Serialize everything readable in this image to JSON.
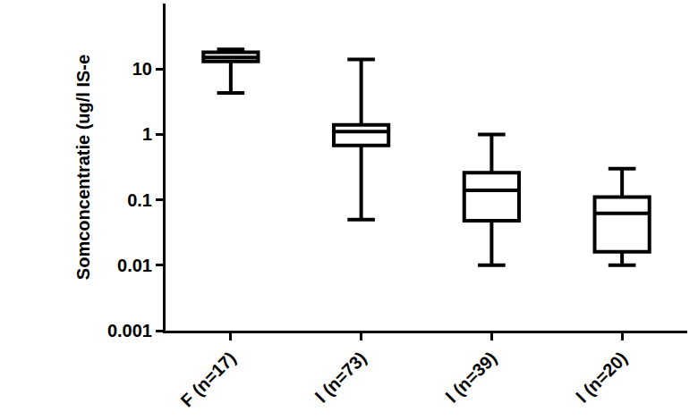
{
  "chart_data": {
    "type": "box",
    "y_label": "Somconcentratie (ug/l IS-e",
    "categories": [
      "F (n=17)",
      "l (n=73)",
      "l (n=39)",
      "l (n=20)"
    ],
    "min": [
      4.3,
      0.05,
      0.01,
      0.01
    ],
    "q1": [
      13,
      0.68,
      0.048,
      0.016
    ],
    "median": [
      15,
      1.1,
      0.14,
      0.062
    ],
    "q3": [
      18,
      1.4,
      0.26,
      0.11
    ],
    "max": [
      20,
      14,
      1.0,
      0.3
    ],
    "color": "#000000",
    "log": "y",
    "ylim": [
      0.001,
      100
    ],
    "yticks": [
      0.001,
      0.01,
      0.1,
      1,
      10
    ],
    "grid": false
  }
}
